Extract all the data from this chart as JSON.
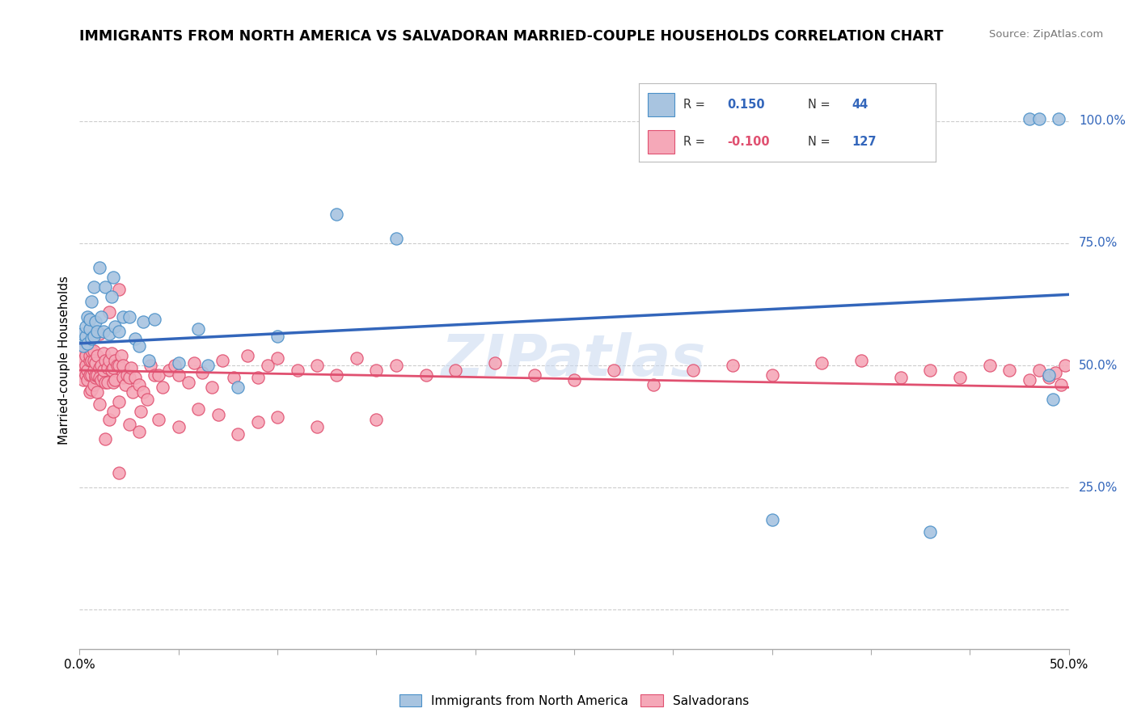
{
  "title": "IMMIGRANTS FROM NORTH AMERICA VS SALVADORAN MARRIED-COUPLE HOUSEHOLDS CORRELATION CHART",
  "source": "Source: ZipAtlas.com",
  "ylabel": "Married-couple Households",
  "legend_label1": "Immigrants from North America",
  "legend_label2": "Salvadorans",
  "R1": "0.150",
  "N1": "44",
  "R2": "-0.100",
  "N2": "127",
  "color_blue_fill": "#A8C4E0",
  "color_blue_edge": "#4A90C8",
  "color_pink_fill": "#F5A8B8",
  "color_pink_edge": "#E05070",
  "color_line_blue": "#3366BB",
  "color_line_pink": "#E05070",
  "watermark": "ZIPatlas",
  "xlim": [
    0.0,
    0.5
  ],
  "ylim": [
    -0.08,
    1.1
  ],
  "right_yticks": [
    0.0,
    0.25,
    0.5,
    0.75,
    1.0
  ],
  "right_yticklabels": [
    "",
    "25.0%",
    "50.0%",
    "75.0%",
    "100.0%"
  ],
  "blue_line_y0": 0.545,
  "blue_line_y1": 0.645,
  "pink_line_y0": 0.49,
  "pink_line_y1": 0.455,
  "blue_x": [
    0.001,
    0.002,
    0.003,
    0.003,
    0.004,
    0.004,
    0.005,
    0.005,
    0.006,
    0.006,
    0.007,
    0.007,
    0.008,
    0.009,
    0.01,
    0.011,
    0.012,
    0.013,
    0.015,
    0.016,
    0.017,
    0.018,
    0.02,
    0.022,
    0.025,
    0.028,
    0.03,
    0.032,
    0.035,
    0.038,
    0.05,
    0.06,
    0.065,
    0.08,
    0.1,
    0.13,
    0.16,
    0.35,
    0.43,
    0.48,
    0.485,
    0.49,
    0.492,
    0.495
  ],
  "blue_y": [
    0.565,
    0.54,
    0.56,
    0.58,
    0.545,
    0.6,
    0.575,
    0.595,
    0.555,
    0.63,
    0.56,
    0.66,
    0.59,
    0.57,
    0.7,
    0.6,
    0.57,
    0.66,
    0.565,
    0.64,
    0.68,
    0.58,
    0.57,
    0.6,
    0.6,
    0.555,
    0.54,
    0.59,
    0.51,
    0.595,
    0.505,
    0.575,
    0.5,
    0.455,
    0.56,
    0.81,
    0.76,
    0.185,
    0.16,
    1.005,
    1.005,
    0.48,
    0.43,
    1.005
  ],
  "pink_x": [
    0.001,
    0.001,
    0.002,
    0.002,
    0.003,
    0.003,
    0.003,
    0.004,
    0.004,
    0.004,
    0.005,
    0.005,
    0.005,
    0.005,
    0.006,
    0.006,
    0.006,
    0.006,
    0.007,
    0.007,
    0.007,
    0.007,
    0.008,
    0.008,
    0.008,
    0.009,
    0.009,
    0.009,
    0.01,
    0.01,
    0.01,
    0.011,
    0.011,
    0.012,
    0.012,
    0.012,
    0.013,
    0.013,
    0.014,
    0.014,
    0.015,
    0.015,
    0.016,
    0.016,
    0.017,
    0.017,
    0.018,
    0.018,
    0.019,
    0.02,
    0.02,
    0.021,
    0.022,
    0.022,
    0.023,
    0.024,
    0.025,
    0.026,
    0.027,
    0.028,
    0.03,
    0.031,
    0.032,
    0.034,
    0.036,
    0.038,
    0.04,
    0.042,
    0.045,
    0.048,
    0.05,
    0.055,
    0.058,
    0.062,
    0.067,
    0.072,
    0.078,
    0.085,
    0.09,
    0.095,
    0.1,
    0.11,
    0.12,
    0.13,
    0.14,
    0.15,
    0.16,
    0.175,
    0.19,
    0.21,
    0.23,
    0.25,
    0.27,
    0.29,
    0.31,
    0.33,
    0.35,
    0.375,
    0.395,
    0.415,
    0.43,
    0.445,
    0.46,
    0.47,
    0.48,
    0.485,
    0.49,
    0.493,
    0.496,
    0.498,
    0.013,
    0.015,
    0.017,
    0.02,
    0.025,
    0.01,
    0.03,
    0.04,
    0.05,
    0.06,
    0.07,
    0.08,
    0.09,
    0.1,
    0.12,
    0.15,
    0.02
  ],
  "pink_y": [
    0.51,
    0.49,
    0.53,
    0.47,
    0.5,
    0.52,
    0.48,
    0.545,
    0.49,
    0.47,
    0.51,
    0.48,
    0.445,
    0.52,
    0.45,
    0.51,
    0.48,
    0.53,
    0.46,
    0.53,
    0.49,
    0.51,
    0.475,
    0.505,
    0.48,
    0.445,
    0.52,
    0.48,
    0.495,
    0.565,
    0.475,
    0.5,
    0.47,
    0.525,
    0.475,
    0.49,
    0.465,
    0.51,
    0.465,
    0.495,
    0.51,
    0.61,
    0.525,
    0.49,
    0.465,
    0.495,
    0.47,
    0.51,
    0.5,
    0.655,
    0.5,
    0.52,
    0.5,
    0.475,
    0.46,
    0.48,
    0.475,
    0.495,
    0.445,
    0.475,
    0.46,
    0.405,
    0.445,
    0.43,
    0.5,
    0.48,
    0.48,
    0.455,
    0.49,
    0.5,
    0.48,
    0.465,
    0.505,
    0.485,
    0.455,
    0.51,
    0.475,
    0.52,
    0.475,
    0.5,
    0.515,
    0.49,
    0.5,
    0.48,
    0.515,
    0.49,
    0.5,
    0.48,
    0.49,
    0.505,
    0.48,
    0.47,
    0.49,
    0.46,
    0.49,
    0.5,
    0.48,
    0.505,
    0.51,
    0.475,
    0.49,
    0.475,
    0.5,
    0.49,
    0.47,
    0.49,
    0.475,
    0.485,
    0.46,
    0.5,
    0.35,
    0.39,
    0.405,
    0.425,
    0.38,
    0.42,
    0.365,
    0.39,
    0.375,
    0.41,
    0.4,
    0.36,
    0.385,
    0.395,
    0.375,
    0.39,
    0.28
  ]
}
